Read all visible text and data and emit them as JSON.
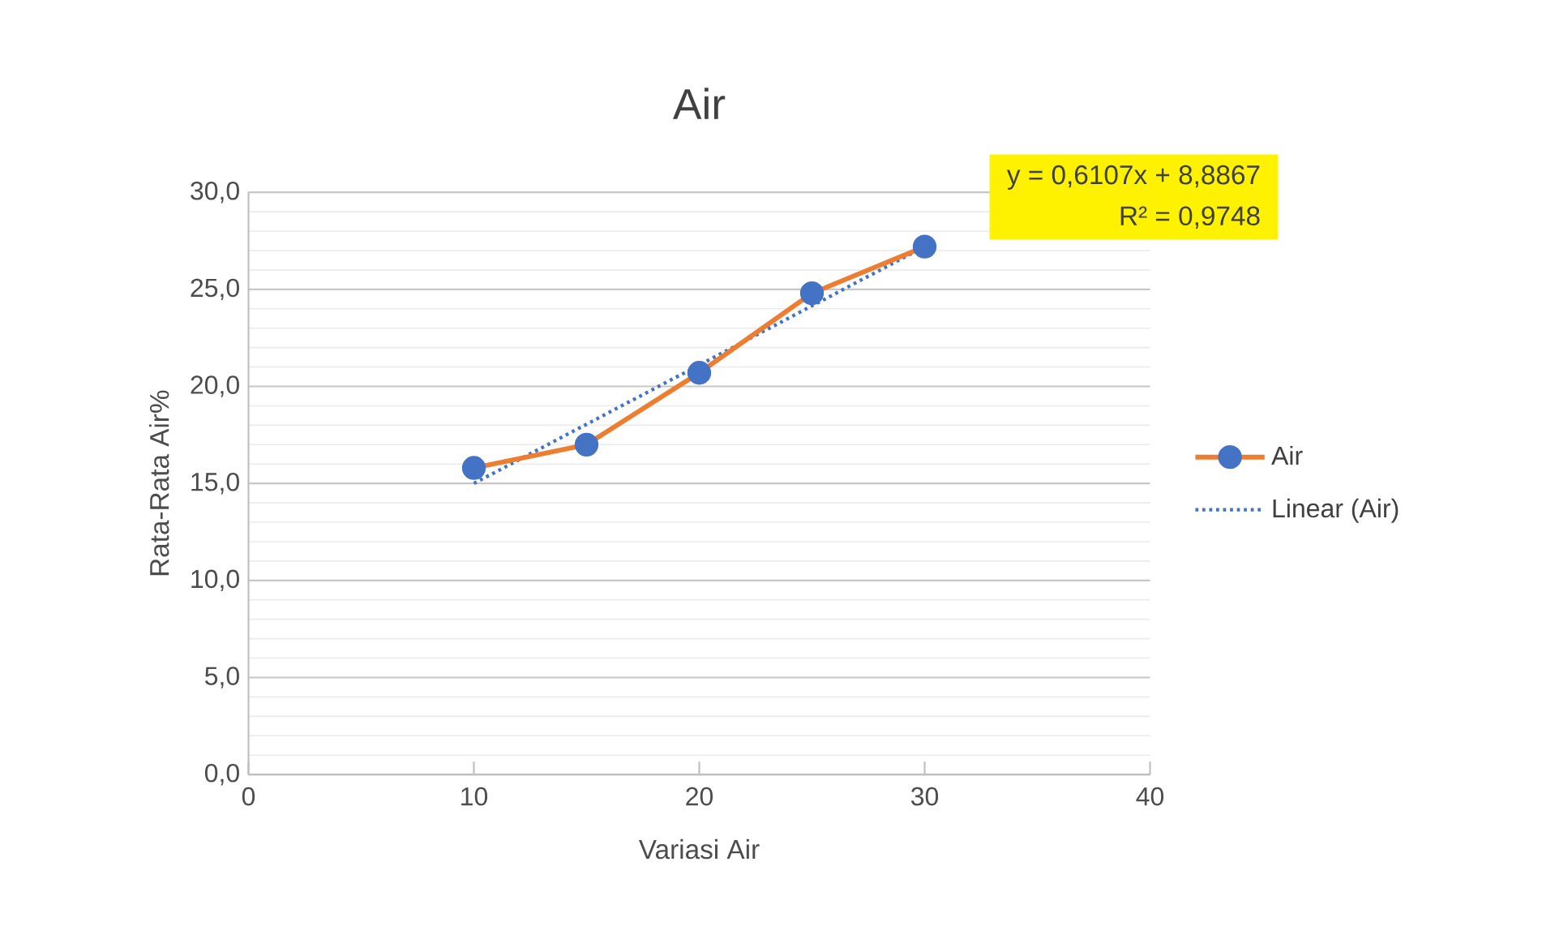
{
  "chart_data": {
    "type": "line",
    "title": "Air",
    "xlabel": "Variasi Air",
    "ylabel": "Rata-Rata Air%",
    "xlim": [
      0,
      40
    ],
    "xticks": [
      0,
      10,
      20,
      30,
      40
    ],
    "ylim": [
      0,
      30
    ],
    "yticks": [
      {
        "value": 0,
        "label": "0,0"
      },
      {
        "value": 5,
        "label": "5,0"
      },
      {
        "value": 10,
        "label": "10,0"
      },
      {
        "value": 15,
        "label": "15,0"
      },
      {
        "value": 20,
        "label": "20,0"
      },
      {
        "value": 25,
        "label": "25,0"
      },
      {
        "value": 30,
        "label": "30,0"
      }
    ],
    "grid": "y",
    "legend": "right",
    "annotations": [
      "y = 0,6107x + 8,8867",
      "R² = 0,9748"
    ],
    "series": [
      {
        "name": "Air",
        "color": "#ed7d31",
        "x": [
          10,
          15,
          20,
          25,
          30
        ],
        "values": [
          15.8,
          17.0,
          20.7,
          24.8,
          27.2
        ],
        "marker": "circle",
        "line_style": "solid"
      },
      {
        "name": "Linear (Air)",
        "color": "#4472c4",
        "x": [
          10,
          30
        ],
        "values": [
          15.0,
          27.2
        ],
        "line_style": "dotted"
      }
    ]
  }
}
